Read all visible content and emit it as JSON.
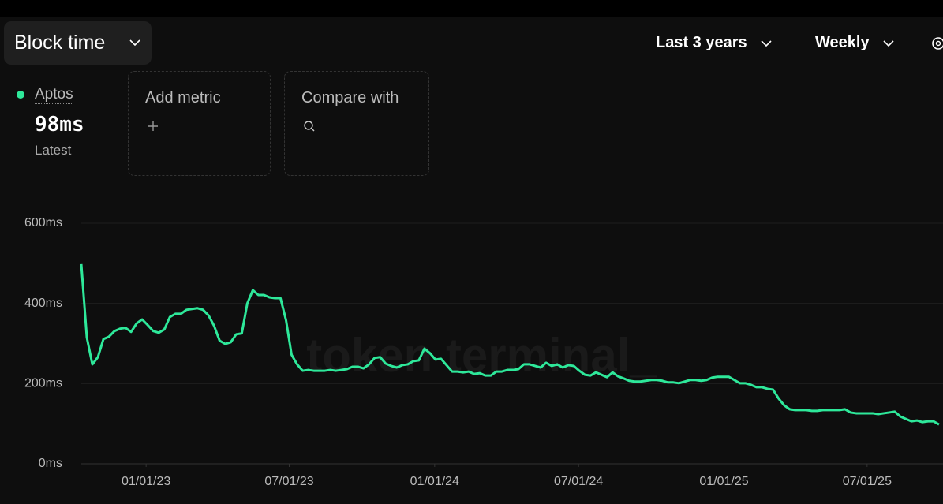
{
  "toolbar": {
    "metric": "Block time",
    "range": "Last 3 years",
    "interval": "Weekly"
  },
  "panel": {
    "latest_value": "98ms",
    "latest_caption": "Latest",
    "add_metric": "Add metric",
    "compare": "Compare with"
  },
  "chart_data": {
    "type": "line",
    "watermark": "token terminal_",
    "x": [
      "2022-10-11",
      "2022-10-18",
      "2022-10-25",
      "2022-11-01",
      "2022-11-08",
      "2022-11-15",
      "2022-11-22",
      "2022-11-29",
      "2022-12-06",
      "2022-12-13",
      "2022-12-20",
      "2022-12-27",
      "2023-01-03",
      "2023-01-10",
      "2023-01-17",
      "2023-01-24",
      "2023-01-31",
      "2023-02-07",
      "2023-02-14",
      "2023-02-21",
      "2023-02-28",
      "2023-03-07",
      "2023-03-14",
      "2023-03-21",
      "2023-03-28",
      "2023-04-04",
      "2023-04-11",
      "2023-04-18",
      "2023-04-25",
      "2023-05-02",
      "2023-05-09",
      "2023-05-16",
      "2023-05-23",
      "2023-05-30",
      "2023-06-06",
      "2023-06-13",
      "2023-06-20",
      "2023-06-27",
      "2023-07-04",
      "2023-07-11",
      "2023-07-18",
      "2023-07-25",
      "2023-08-01",
      "2023-08-08",
      "2023-08-15",
      "2023-08-22",
      "2023-08-29",
      "2023-09-05",
      "2023-09-12",
      "2023-09-19",
      "2023-09-26",
      "2023-10-03",
      "2023-10-10",
      "2023-10-17",
      "2023-10-24",
      "2023-10-31",
      "2023-11-07",
      "2023-11-14",
      "2023-11-21",
      "2023-11-28",
      "2023-12-05",
      "2023-12-12",
      "2023-12-19",
      "2023-12-26",
      "2024-01-02",
      "2024-01-09",
      "2024-01-16",
      "2024-01-23",
      "2024-01-30",
      "2024-02-06",
      "2024-02-13",
      "2024-02-20",
      "2024-02-27",
      "2024-03-05",
      "2024-03-12",
      "2024-03-19",
      "2024-03-26",
      "2024-04-02",
      "2024-04-09",
      "2024-04-16",
      "2024-04-23",
      "2024-04-30",
      "2024-05-07",
      "2024-05-14",
      "2024-05-21",
      "2024-05-28",
      "2024-06-04",
      "2024-06-11",
      "2024-06-18",
      "2024-06-25",
      "2024-07-02",
      "2024-07-09",
      "2024-07-16",
      "2024-07-23",
      "2024-07-30",
      "2024-08-06",
      "2024-08-13",
      "2024-08-20",
      "2024-08-27",
      "2024-09-03",
      "2024-09-10",
      "2024-09-17",
      "2024-09-24",
      "2024-10-01",
      "2024-10-08",
      "2024-10-15",
      "2024-10-22",
      "2024-10-29",
      "2024-11-05",
      "2024-11-12",
      "2024-11-19",
      "2024-11-26",
      "2024-12-03",
      "2024-12-10",
      "2024-12-17",
      "2024-12-24",
      "2024-12-31",
      "2025-01-07",
      "2025-01-14",
      "2025-01-21",
      "2025-01-28",
      "2025-02-04",
      "2025-02-11",
      "2025-02-18",
      "2025-02-25",
      "2025-03-04",
      "2025-03-11",
      "2025-03-18",
      "2025-03-25",
      "2025-04-01",
      "2025-04-08",
      "2025-04-15",
      "2025-04-22",
      "2025-04-29",
      "2025-05-06",
      "2025-05-13",
      "2025-05-20",
      "2025-05-27",
      "2025-06-03",
      "2025-06-10",
      "2025-06-17",
      "2025-06-24",
      "2025-07-01",
      "2025-07-08",
      "2025-07-15",
      "2025-07-22",
      "2025-07-29",
      "2025-08-05",
      "2025-08-12",
      "2025-08-19",
      "2025-08-26",
      "2025-09-02",
      "2025-09-09",
      "2025-09-16",
      "2025-09-23",
      "2025-09-30"
    ],
    "series": [
      {
        "name": "Aptos",
        "color": "#2ee89a",
        "values": [
          498,
          315,
          248,
          266,
          311,
          317,
          331,
          337,
          339,
          329,
          350,
          360,
          346,
          331,
          327,
          335,
          366,
          374,
          374,
          384,
          386,
          388,
          384,
          370,
          344,
          307,
          299,
          303,
          323,
          325,
          400,
          433,
          421,
          421,
          415,
          413,
          413,
          358,
          272,
          248,
          232,
          234,
          232,
          232,
          232,
          234,
          232,
          234,
          236,
          242,
          242,
          238,
          248,
          264,
          266,
          250,
          244,
          240,
          246,
          248,
          256,
          258,
          287,
          276,
          260,
          262,
          246,
          230,
          230,
          228,
          230,
          224,
          226,
          220,
          220,
          230,
          230,
          234,
          234,
          236,
          248,
          248,
          244,
          240,
          252,
          244,
          248,
          240,
          246,
          244,
          232,
          222,
          220,
          228,
          222,
          216,
          228,
          218,
          213,
          207,
          205,
          205,
          207,
          209,
          209,
          207,
          203,
          203,
          201,
          205,
          209,
          209,
          207,
          209,
          215,
          217,
          217,
          217,
          209,
          201,
          201,
          197,
          191,
          191,
          187,
          185,
          163,
          146,
          136,
          134,
          134,
          134,
          132,
          132,
          134,
          134,
          134,
          134,
          136,
          128,
          126,
          126,
          126,
          126,
          124,
          126,
          128,
          130,
          118,
          112,
          106,
          108,
          104,
          106,
          106,
          98
        ]
      }
    ],
    "xlim": [
      "2022-10-11",
      "2025-09-30"
    ],
    "xticks": [
      {
        "value": "2023-01-01",
        "label": "01/01/23"
      },
      {
        "value": "2023-07-01",
        "label": "07/01/23"
      },
      {
        "value": "2024-01-01",
        "label": "01/01/24"
      },
      {
        "value": "2024-07-01",
        "label": "07/01/24"
      },
      {
        "value": "2025-01-01",
        "label": "01/01/25"
      },
      {
        "value": "2025-07-01",
        "label": "07/01/25"
      }
    ],
    "ylim": [
      0,
      600
    ],
    "yticks": [
      {
        "value": 0,
        "label": "0ms"
      },
      {
        "value": 200,
        "label": "200ms"
      },
      {
        "value": 400,
        "label": "400ms"
      },
      {
        "value": 600,
        "label": "600ms"
      }
    ],
    "grid": true
  }
}
